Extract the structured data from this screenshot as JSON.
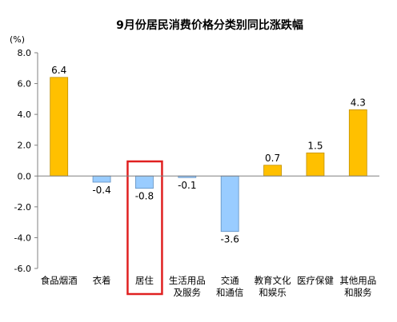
{
  "chart_data": {
    "type": "bar",
    "title": "9月份居民消费价格分类别同比涨跌幅",
    "unit_label": "(%)",
    "categories": [
      [
        "食品烟酒"
      ],
      [
        "衣着"
      ],
      [
        "居住"
      ],
      [
        "生活用品",
        "及服务"
      ],
      [
        "交通",
        "和通信"
      ],
      [
        "教育文化",
        "和娱乐"
      ],
      [
        "医疗保健"
      ],
      [
        "其他用品",
        "和服务"
      ]
    ],
    "values": [
      6.4,
      -0.4,
      -0.8,
      -0.1,
      -3.6,
      0.7,
      1.5,
      4.3
    ],
    "value_labels": [
      "6.4",
      "-0.4",
      "-0.8",
      "-0.1",
      "-3.6",
      "0.7",
      "1.5",
      "4.3"
    ],
    "ylim": [
      -6.0,
      8.0
    ],
    "yticks": [
      8.0,
      6.0,
      4.0,
      2.0,
      0.0,
      -2.0,
      -4.0,
      -6.0
    ],
    "ytick_labels": [
      "8.0",
      "6.0",
      "4.0",
      "2.0",
      "0.0",
      "-2.0",
      "-4.0",
      "-6.0"
    ],
    "grid": false,
    "colors": {
      "positive": "#FFC000",
      "negative": "#99CCFF",
      "positive_border": "#C09000",
      "negative_border": "#5F8FC0",
      "highlight": "#E02020",
      "axis": "#808080"
    },
    "highlighted_category_index": 2
  }
}
